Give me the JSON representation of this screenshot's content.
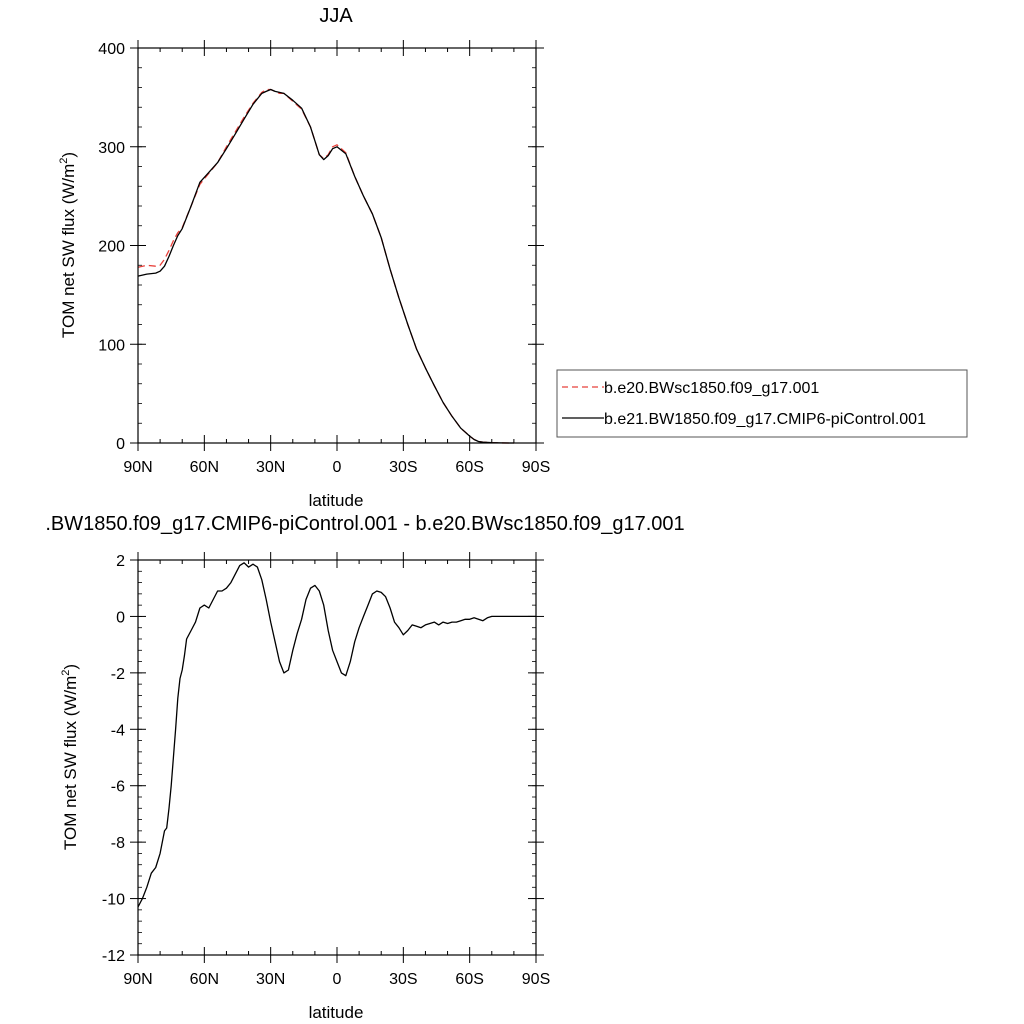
{
  "chart_data": [
    {
      "type": "line",
      "title": "JJA",
      "xlabel": "latitude",
      "ylabel": "TOM net SW flux (W/m",
      "ylabel_sup": "2",
      "ylabel_end": ")",
      "xlim": [
        90,
        -90
      ],
      "ylim": [
        0,
        400
      ],
      "x_ticks": [
        90,
        60,
        30,
        0,
        -30,
        -60,
        -90
      ],
      "x_tick_labels": [
        "90N",
        "60N",
        "30N",
        "0",
        "30S",
        "60S",
        "90S"
      ],
      "y_ticks": [
        0,
        100,
        200,
        300,
        400
      ],
      "y_tick_labels": [
        "0",
        "100",
        "200",
        "300",
        "400"
      ],
      "legend": "right",
      "series": [
        {
          "name": "b.e20.BWsc1850.f09_g17.001",
          "color": "#e8403a",
          "dash": "dashed",
          "x": [
            90,
            86,
            82,
            80,
            78,
            76,
            74,
            72,
            70,
            66,
            62,
            58,
            54,
            50,
            46,
            42,
            38,
            34,
            32,
            30,
            28,
            26,
            24,
            20,
            16,
            12,
            10,
            8,
            6,
            4,
            2,
            0,
            -4,
            -8,
            -12,
            -16,
            -20,
            -24,
            -28,
            -32,
            -36,
            -40,
            -44,
            -48,
            -52,
            -56,
            -60,
            -62,
            -64,
            -66,
            -70,
            -74,
            -78,
            -80
          ],
          "y": [
            178,
            180,
            179,
            180,
            186,
            195,
            205,
            213,
            218,
            240,
            262,
            273,
            284,
            300,
            315,
            330,
            344,
            355,
            358,
            358,
            356,
            354,
            354,
            346,
            338,
            320,
            306,
            292,
            288,
            292,
            300,
            302,
            294,
            270,
            250,
            232,
            208,
            176,
            147,
            120,
            95,
            76,
            58,
            41,
            27,
            15,
            7,
            3.5,
            1.5,
            0.8,
            0.3,
            0.1,
            0,
            0
          ]
        },
        {
          "name": "b.e21.BW1850.f09_g17.CMIP6-piControl.001",
          "color": "#000000",
          "dash": "solid",
          "x": [
            90,
            86,
            82,
            80,
            78,
            76,
            74,
            72,
            70,
            66,
            62,
            58,
            54,
            50,
            46,
            42,
            38,
            34,
            32,
            30,
            28,
            26,
            24,
            20,
            16,
            12,
            10,
            8,
            6,
            4,
            2,
            0,
            -4,
            -8,
            -12,
            -16,
            -20,
            -24,
            -28,
            -32,
            -36,
            -40,
            -44,
            -48,
            -52,
            -56,
            -60,
            -62,
            -64,
            -66,
            -70,
            -74,
            -78,
            -80
          ],
          "y": [
            169,
            171,
            172,
            174,
            179,
            189,
            200,
            210,
            217,
            240,
            264,
            274,
            284,
            298,
            313,
            328,
            343,
            354,
            356,
            358,
            356,
            355,
            354,
            347,
            339,
            320,
            306,
            292,
            287,
            291,
            298,
            300,
            293,
            270,
            250,
            232,
            208,
            176,
            147,
            120,
            95,
            76,
            58,
            41,
            27,
            15,
            7,
            3.5,
            1.5,
            0.8,
            0.3,
            0.1,
            0,
            0
          ]
        }
      ]
    },
    {
      "type": "line",
      "title": ".BW1850.f09_g17.CMIP6-piControl.001 - b.e20.BWsc1850.f09_g17.001",
      "xlabel": "latitude",
      "ylabel": "TOM net SW flux (W/m",
      "ylabel_sup": "2",
      "ylabel_end": ")",
      "xlim": [
        90,
        -90
      ],
      "ylim": [
        -12,
        2
      ],
      "x_ticks": [
        90,
        60,
        30,
        0,
        -30,
        -60,
        -90
      ],
      "x_tick_labels": [
        "90N",
        "60N",
        "30N",
        "0",
        "30S",
        "60S",
        "90S"
      ],
      "y_ticks": [
        -12,
        -10,
        -8,
        -6,
        -4,
        -2,
        0,
        2
      ],
      "y_tick_labels": [
        "-12",
        "-10",
        "-8",
        "-6",
        "-4",
        "-2",
        "0",
        "2"
      ],
      "series": [
        {
          "color": "#000000",
          "dash": "solid",
          "x": [
            90,
            88,
            86,
            84,
            82,
            80,
            78,
            77,
            76,
            75,
            74,
            73,
            72,
            71,
            70,
            69,
            68,
            66,
            64,
            62,
            60,
            58,
            56,
            54,
            52,
            50,
            48,
            46,
            44,
            42,
            40,
            38,
            36,
            34,
            32,
            30,
            28,
            26,
            24,
            22,
            20,
            18,
            16,
            14,
            12,
            10,
            8,
            6,
            4,
            2,
            0,
            -2,
            -4,
            -6,
            -8,
            -10,
            -12,
            -14,
            -16,
            -18,
            -20,
            -22,
            -24,
            -26,
            -28,
            -30,
            -32,
            -34,
            -36,
            -38,
            -40,
            -42,
            -44,
            -46,
            -48,
            -50,
            -52,
            -54,
            -56,
            -58,
            -60,
            -62,
            -64,
            -66,
            -68,
            -70,
            -74,
            -80,
            -90
          ],
          "y": [
            -10.3,
            -10,
            -9.6,
            -9.1,
            -8.9,
            -8.4,
            -7.6,
            -7.5,
            -6.8,
            -6,
            -5,
            -4,
            -2.9,
            -2.2,
            -1.9,
            -1.4,
            -0.8,
            -0.5,
            -0.2,
            0.3,
            0.4,
            0.3,
            0.6,
            0.9,
            0.9,
            1.0,
            1.2,
            1.5,
            1.8,
            1.9,
            1.75,
            1.85,
            1.75,
            1.3,
            0.6,
            -0.2,
            -0.9,
            -1.6,
            -2.0,
            -1.9,
            -1.2,
            -0.6,
            -0.1,
            0.6,
            1.0,
            1.1,
            0.9,
            0.4,
            -0.5,
            -1.2,
            -1.6,
            -2.0,
            -2.1,
            -1.6,
            -0.9,
            -0.4,
            0.0,
            0.4,
            0.8,
            0.9,
            0.85,
            0.7,
            0.3,
            -0.2,
            -0.4,
            -0.65,
            -0.5,
            -0.3,
            -0.35,
            -0.4,
            -0.3,
            -0.25,
            -0.2,
            -0.3,
            -0.2,
            -0.25,
            -0.2,
            -0.2,
            -0.15,
            -0.1,
            -0.1,
            -0.05,
            -0.1,
            -0.15,
            -0.05,
            0.0,
            0.0,
            0.0,
            0.0
          ]
        }
      ]
    }
  ]
}
